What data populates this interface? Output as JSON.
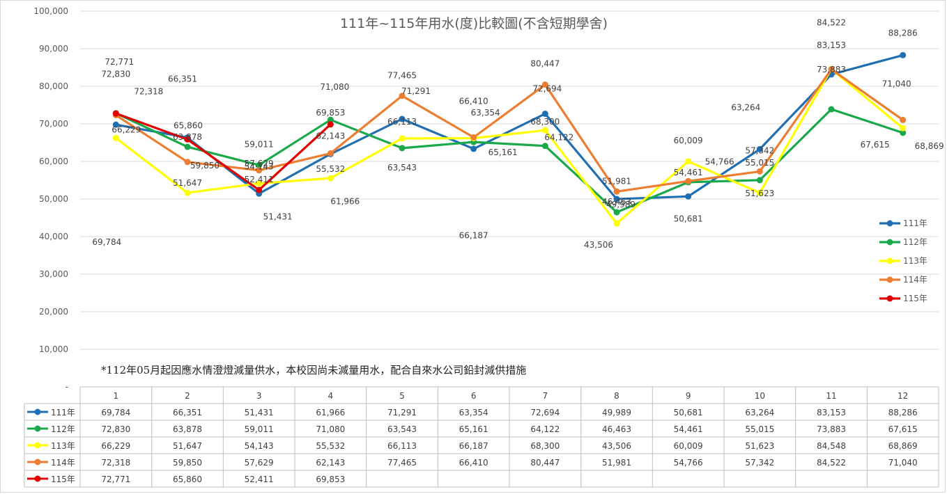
{
  "chart_data": {
    "type": "line",
    "title": "111年~115年用水(度)比較圖(不含短期學舍)",
    "note": "*112年05月起因應水情澄燈減量供水，本校因尚未減量用水，配合自來水公司鉛封減供措施",
    "categories": [
      "1",
      "2",
      "3",
      "4",
      "5",
      "6",
      "7",
      "8",
      "9",
      "10",
      "11",
      "12"
    ],
    "ylim": [
      0,
      100000
    ],
    "yticks": [
      "100,000",
      "90,000",
      "80,000",
      "70,000",
      "60,000",
      "50,000",
      "40,000",
      "30,000",
      "20,000",
      "10,000",
      "-"
    ],
    "legend_position": "right",
    "series": [
      {
        "name": "111年",
        "color": "#1f6fb2",
        "values": [
          69784,
          66351,
          51431,
          61966,
          71291,
          63354,
          72694,
          49989,
          50681,
          63264,
          83153,
          88286
        ],
        "display": [
          "69,784",
          "66,351",
          "51,431",
          "61,966",
          "71,291",
          "63,354",
          "72,694",
          "49,989",
          "50,681",
          "63,264",
          "83,153",
          "88,286"
        ]
      },
      {
        "name": "112年",
        "color": "#1aa94a",
        "values": [
          72830,
          63878,
          59011,
          71080,
          63543,
          65161,
          64122,
          46463,
          54461,
          55015,
          73883,
          67615
        ],
        "display": [
          "72,830",
          "63,878",
          "59,011",
          "71,080",
          "63,543",
          "65,161",
          "64,122",
          "46,463",
          "54,461",
          "55,015",
          "73,883",
          "67,615"
        ]
      },
      {
        "name": "113年",
        "color": "#ffff00",
        "values": [
          66229,
          51647,
          54143,
          55532,
          66113,
          66187,
          68300,
          43506,
          60009,
          51623,
          84548,
          68869
        ],
        "display": [
          "66,229",
          "51,647",
          "54,143",
          "55,532",
          "66,113",
          "66,187",
          "68,300",
          "43,506",
          "60,009",
          "51,623",
          "84,548",
          "68,869"
        ]
      },
      {
        "name": "114年",
        "color": "#ed7d31",
        "values": [
          72318,
          59850,
          57629,
          62143,
          77465,
          66410,
          80447,
          51981,
          54766,
          57342,
          84522,
          71040
        ],
        "display": [
          "72,318",
          "59,850",
          "57,629",
          "62,143",
          "77,465",
          "66,410",
          "80,447",
          "51,981",
          "54,766",
          "57,342",
          "84,522",
          "71,040"
        ]
      },
      {
        "name": "115年",
        "color": "#e30000",
        "values": [
          72771,
          65860,
          52411,
          69853,
          null,
          null,
          null,
          null,
          null,
          null,
          null,
          null
        ],
        "display": [
          "72,771",
          "65,860",
          "52,411",
          "69,853",
          "",
          "",
          "",
          "",
          "",
          "",
          "",
          ""
        ]
      }
    ]
  }
}
